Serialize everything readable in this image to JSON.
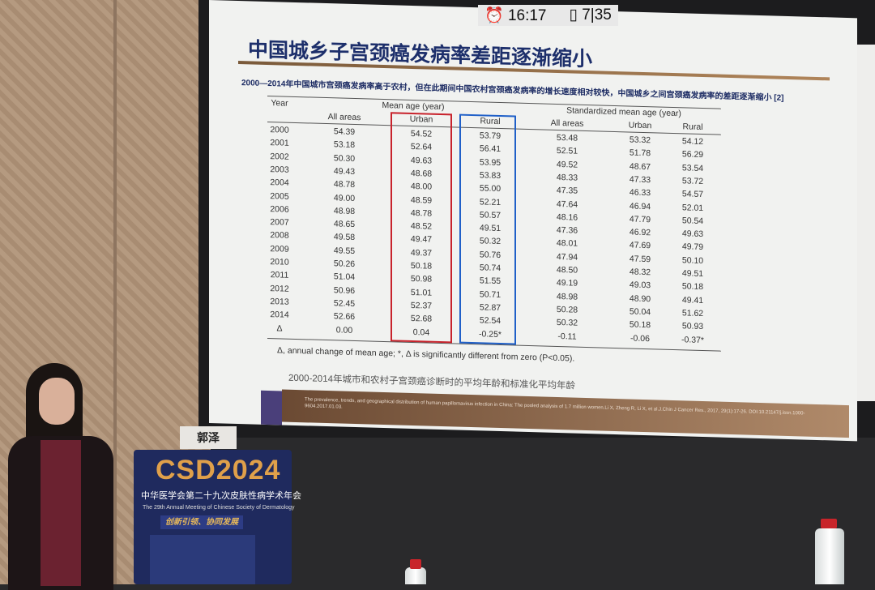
{
  "status": {
    "clock_icon": "alarm-clock-icon",
    "time": "16:17",
    "page_icon": "page-icon",
    "page": "7|35"
  },
  "slide": {
    "title": "中国城乡子宫颈癌发病率差距逐渐缩小",
    "subtitle": "2000—2014年中国城市宫颈癌发病率高于农村，但在此期间中国农村宫颈癌发病率的增长速度相对较快，中国城乡之间宫颈癌发病率的差距逐渐缩小 [2]",
    "table": {
      "year_header": "Year",
      "group1": "Mean age (year)",
      "group2": "Standardized mean age (year)",
      "columns": [
        "All areas",
        "Urban",
        "Rural",
        "All areas",
        "Urban",
        "Rural"
      ],
      "rows": [
        [
          "2000",
          "54.39",
          "54.52",
          "53.79",
          "53.48",
          "53.32",
          "54.12"
        ],
        [
          "2001",
          "53.18",
          "52.64",
          "56.41",
          "52.51",
          "51.78",
          "56.29"
        ],
        [
          "2002",
          "50.30",
          "49.63",
          "53.95",
          "49.52",
          "48.67",
          "53.54"
        ],
        [
          "2003",
          "49.43",
          "48.68",
          "53.83",
          "48.33",
          "47.33",
          "53.72"
        ],
        [
          "2004",
          "48.78",
          "48.00",
          "55.00",
          "47.35",
          "46.33",
          "54.57"
        ],
        [
          "2005",
          "49.00",
          "48.59",
          "52.21",
          "47.64",
          "46.94",
          "52.01"
        ],
        [
          "2006",
          "48.98",
          "48.78",
          "50.57",
          "48.16",
          "47.79",
          "50.54"
        ],
        [
          "2007",
          "48.65",
          "48.52",
          "49.51",
          "47.36",
          "46.92",
          "49.63"
        ],
        [
          "2008",
          "49.58",
          "49.47",
          "50.32",
          "48.01",
          "47.69",
          "49.79"
        ],
        [
          "2009",
          "49.55",
          "49.37",
          "50.76",
          "47.94",
          "47.59",
          "50.10"
        ],
        [
          "2010",
          "50.26",
          "50.18",
          "50.74",
          "48.50",
          "48.32",
          "49.51"
        ],
        [
          "2011",
          "51.04",
          "50.98",
          "51.55",
          "49.19",
          "49.03",
          "50.18"
        ],
        [
          "2012",
          "50.96",
          "51.01",
          "50.71",
          "48.98",
          "48.90",
          "49.41"
        ],
        [
          "2013",
          "52.45",
          "52.37",
          "52.87",
          "50.28",
          "50.04",
          "51.62"
        ],
        [
          "2014",
          "52.66",
          "52.68",
          "52.54",
          "50.32",
          "50.18",
          "50.93"
        ],
        [
          "Δ",
          "0.00",
          "0.04",
          "-0.25*",
          "-0.11",
          "-0.06",
          "-0.37*"
        ]
      ],
      "highlight_colors": {
        "urban": "#c8232c",
        "rural": "#2060c8"
      }
    },
    "footnote": "Δ, annual change of mean age; *, Δ is significantly different from zero (P<0.05).",
    "caption": "2000-2014年城市和农村子宫颈癌诊断时的平均年龄和标准化平均年龄",
    "reference": "The prevalence, trends, and geographical distribution of human papillomavirus infection in China: The pooled analysis of 1.7 million women.Li X, Zheng R, Li X, et al.J.Chin J Cancer Res., 2017, 29(1):17-26. DOI:10.21147/j.issn.1000-9604.2017.01.03."
  },
  "venue": {
    "nameplate": "郭泽",
    "logo": "CSD2024",
    "podium_cn": "中华医学会第二十九次皮肤性病学术年会",
    "podium_en": "The 29th Annual Meeting of Chinese Society of Dermatology",
    "slogan": "创新引领、协同发展"
  }
}
